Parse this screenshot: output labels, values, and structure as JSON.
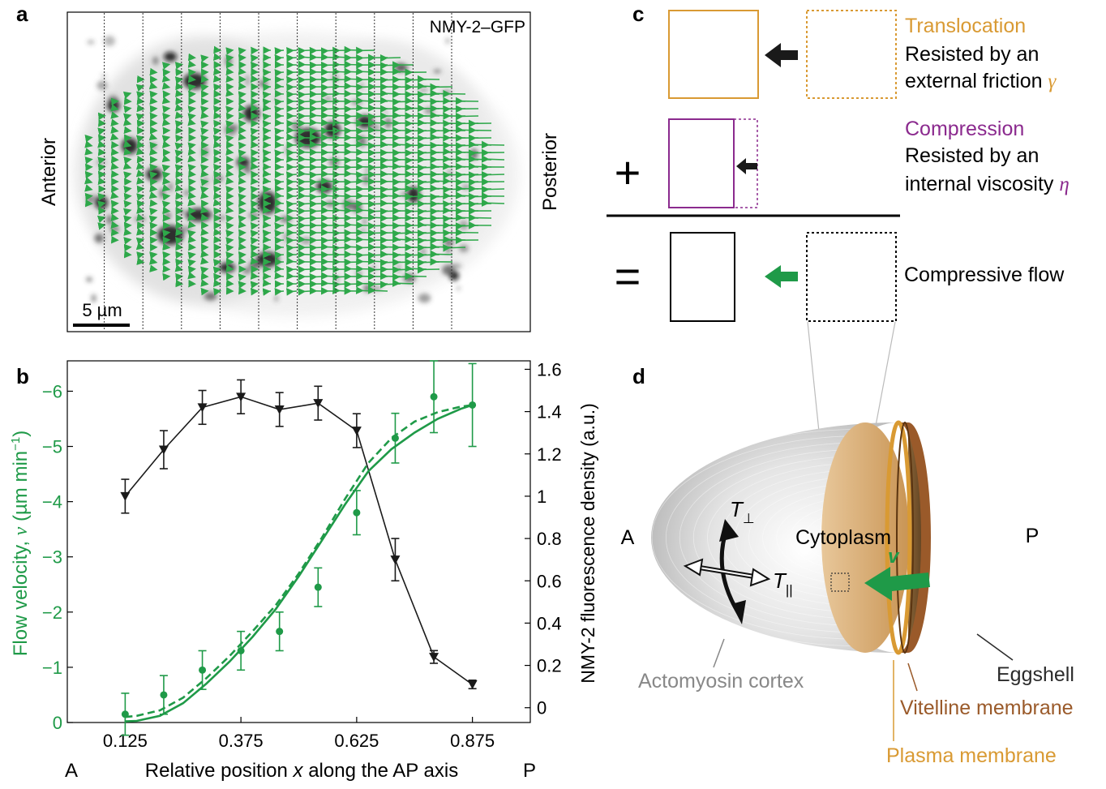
{
  "panels": {
    "a": "a",
    "b": "b",
    "c": "c",
    "d": "d"
  },
  "panel_a": {
    "channel_label": "NMY-2–GFP",
    "left_label": "Anterior",
    "right_label": "Posterior",
    "scale_bar_label": "5 µm",
    "colors": {
      "flow_arrows": "#2ea84a",
      "myosin": "#1a1a1a"
    }
  },
  "panel_b": {
    "left_label": "A",
    "right_label": "P",
    "chart_data": {
      "type": "line",
      "xlabel_parts": [
        "Relative position ",
        "x",
        " along the AP axis"
      ],
      "ylabel_left_parts": [
        "Flow velocity, ",
        "v",
        " (µm min",
        "−1",
        ")"
      ],
      "ylabel_right": "NMY-2 fluorescence density (a.u.)",
      "x_ticks": [
        "0.125",
        "0.375",
        "0.625",
        "0.875"
      ],
      "x_tick_values": [
        0.125,
        0.375,
        0.625,
        0.875
      ],
      "xlim": [
        0.0,
        1.0
      ],
      "y_left_ticks": [
        "0",
        "−1",
        "−2",
        "−3",
        "−4",
        "−5",
        "−6"
      ],
      "y_left_tick_values": [
        0,
        -1,
        -2,
        -3,
        -4,
        -5,
        -6
      ],
      "y_left_lim": [
        0,
        -6.55
      ],
      "y_right_ticks": [
        "0",
        "0.2",
        "0.4",
        "0.6",
        "0.8",
        "1",
        "1.2",
        "1.4",
        "1.6"
      ],
      "y_right_tick_values": [
        0,
        0.2,
        0.4,
        0.6,
        0.8,
        1.0,
        1.2,
        1.4,
        1.6
      ],
      "y_right_lim": [
        -0.07,
        1.64
      ],
      "series": [
        {
          "axis": "left",
          "color": "#1f9a48",
          "marker": "circle",
          "x": [
            0.125,
            0.2083,
            0.2917,
            0.375,
            0.4583,
            0.5417,
            0.625,
            0.7083,
            0.7917,
            0.875
          ],
          "y": [
            -0.15,
            -0.5,
            -0.95,
            -1.3,
            -1.65,
            -2.45,
            -3.8,
            -5.15,
            -5.9,
            -5.75
          ],
          "err": [
            0.38,
            0.35,
            0.35,
            0.35,
            0.35,
            0.35,
            0.4,
            0.45,
            0.65,
            0.75
          ]
        },
        {
          "axis": "right",
          "color": "#1a1a1a",
          "marker": "triangle-down",
          "x": [
            0.125,
            0.2083,
            0.2917,
            0.375,
            0.4583,
            0.5417,
            0.625,
            0.7083,
            0.7917,
            0.875
          ],
          "y": [
            1.0,
            1.22,
            1.42,
            1.47,
            1.41,
            1.44,
            1.31,
            0.7,
            0.24,
            0.11
          ],
          "err": [
            0.08,
            0.09,
            0.08,
            0.08,
            0.08,
            0.08,
            0.08,
            0.1,
            0.03,
            0.02
          ]
        },
        {
          "axis": "left",
          "color": "#1f9a48",
          "style": "solid",
          "x": [
            0.125,
            0.15,
            0.2,
            0.25,
            0.3,
            0.35,
            0.4,
            0.45,
            0.5,
            0.55,
            0.6,
            0.65,
            0.7,
            0.75,
            0.8,
            0.85,
            0.875
          ],
          "y": [
            -0.02,
            -0.03,
            -0.12,
            -0.35,
            -0.7,
            -1.1,
            -1.55,
            -2.05,
            -2.65,
            -3.3,
            -3.95,
            -4.55,
            -4.95,
            -5.25,
            -5.5,
            -5.68,
            -5.75
          ]
        },
        {
          "axis": "left",
          "color": "#1f9a48",
          "style": "dashed",
          "x": [
            0.125,
            0.15,
            0.2,
            0.25,
            0.3,
            0.35,
            0.4,
            0.45,
            0.5,
            0.55,
            0.6,
            0.65,
            0.7,
            0.75,
            0.8,
            0.85,
            0.875
          ],
          "y": [
            -0.1,
            -0.12,
            -0.22,
            -0.45,
            -0.8,
            -1.2,
            -1.65,
            -2.12,
            -2.7,
            -3.35,
            -4.05,
            -4.7,
            -5.15,
            -5.45,
            -5.62,
            -5.72,
            -5.75
          ]
        }
      ]
    }
  },
  "panel_c": {
    "translocation_title": "Translocation",
    "translocation_line1": "Resisted by an",
    "translocation_line2": "external friction ",
    "translocation_symbol": "γ",
    "compression_title": "Compression",
    "compression_line1": "Resisted by an",
    "compression_line2": "internal viscosity ",
    "compression_symbol": "η",
    "plus_sign": "+",
    "equals_sign": "=",
    "result_label": "Compressive flow",
    "colors": {
      "translocation": "#d99a33",
      "compression": "#8b2a8e",
      "flow": "#1f9a48"
    }
  },
  "panel_d": {
    "anterior": "A",
    "posterior": "P",
    "cytoplasm": "Cytoplasm",
    "velocity_symbol": "v",
    "tension_perp_base": "T",
    "tension_perp_sub": "⊥",
    "tension_par_base": "T",
    "tension_par_sub": "||",
    "actomyosin_cortex": "Actomyosin cortex",
    "eggshell": "Eggshell",
    "vitelline_membrane": "Vitelline membrane",
    "plasma_membrane": "Plasma membrane",
    "colors": {
      "cortex": "#888888",
      "eggshell": "#2b2b2b",
      "vitelline": "#9a5a2a",
      "plasma": "#d99a33"
    }
  }
}
